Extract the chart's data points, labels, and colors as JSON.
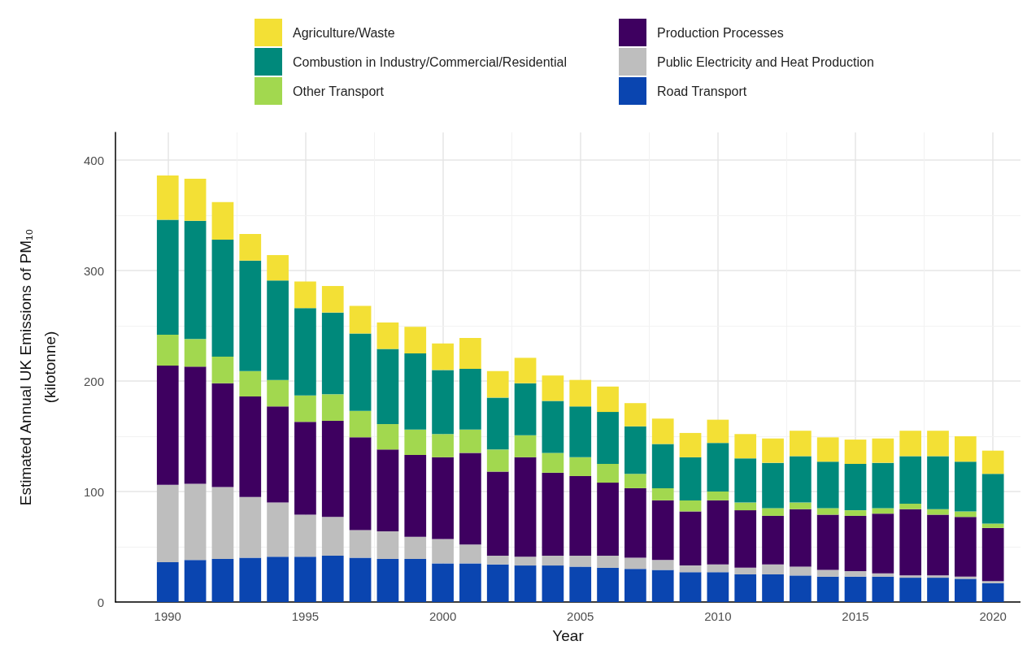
{
  "chart_data": {
    "type": "bar",
    "stacked": true,
    "xlabel": "Year",
    "ylabel": "Estimated Annual UK Emissions of PM₁₀\n(kilotonne)",
    "x": [
      1990,
      1991,
      1992,
      1993,
      1994,
      1995,
      1996,
      1997,
      1998,
      1999,
      2000,
      2001,
      2002,
      2003,
      2004,
      2005,
      2006,
      2007,
      2008,
      2009,
      2010,
      2011,
      2012,
      2013,
      2014,
      2015,
      2016,
      2017,
      2018,
      2019,
      2020
    ],
    "series": [
      {
        "name": "Road Transport",
        "color": "#0a45b0",
        "values": [
          36,
          38,
          39,
          40,
          41,
          41,
          42,
          40,
          39,
          39,
          35,
          35,
          34,
          33,
          33,
          32,
          31,
          30,
          29,
          27,
          27,
          25,
          25,
          24,
          23,
          23,
          23,
          22,
          22,
          21,
          17
        ]
      },
      {
        "name": "Public Electricity and Heat Production",
        "color": "#bebebe",
        "values": [
          70,
          69,
          65,
          55,
          49,
          38,
          35,
          25,
          25,
          20,
          22,
          17,
          8,
          8,
          9,
          10,
          11,
          10,
          9,
          6,
          7,
          6,
          9,
          8,
          6,
          5,
          3,
          2,
          2,
          2,
          2
        ]
      },
      {
        "name": "Production Processes",
        "color": "#3e0060",
        "values": [
          108,
          106,
          94,
          91,
          87,
          84,
          87,
          84,
          74,
          74,
          74,
          83,
          76,
          90,
          75,
          72,
          66,
          63,
          54,
          49,
          58,
          52,
          44,
          52,
          50,
          50,
          54,
          60,
          55,
          54,
          48
        ]
      },
      {
        "name": "Other Transport",
        "color": "#a2d84f",
        "values": [
          28,
          25,
          24,
          23,
          24,
          24,
          24,
          24,
          23,
          23,
          21,
          21,
          20,
          20,
          18,
          17,
          17,
          13,
          11,
          10,
          8,
          7,
          7,
          6,
          6,
          5,
          5,
          5,
          5,
          5,
          4
        ]
      },
      {
        "name": "Combustion in Industry/Commercial/Residential",
        "color": "#00897b",
        "values": [
          104,
          107,
          106,
          100,
          90,
          79,
          74,
          70,
          68,
          69,
          58,
          55,
          47,
          47,
          47,
          46,
          47,
          43,
          40,
          39,
          44,
          40,
          41,
          42,
          42,
          42,
          41,
          43,
          48,
          45,
          45
        ]
      },
      {
        "name": "Agriculture/Waste",
        "color": "#f3e035",
        "values": [
          40,
          38,
          34,
          24,
          23,
          24,
          24,
          25,
          24,
          24,
          24,
          28,
          24,
          23,
          23,
          24,
          23,
          21,
          23,
          22,
          21,
          22,
          22,
          23,
          22,
          22,
          22,
          23,
          23,
          23,
          21
        ]
      }
    ],
    "xlim": [
      1988.1,
      2021
    ],
    "xticks": [
      1990,
      1995,
      2000,
      2005,
      2010,
      2015,
      2020
    ],
    "ylim": [
      0,
      425
    ],
    "yticks": [
      0,
      100,
      200,
      300,
      400
    ],
    "grid": true,
    "legend": "top"
  }
}
